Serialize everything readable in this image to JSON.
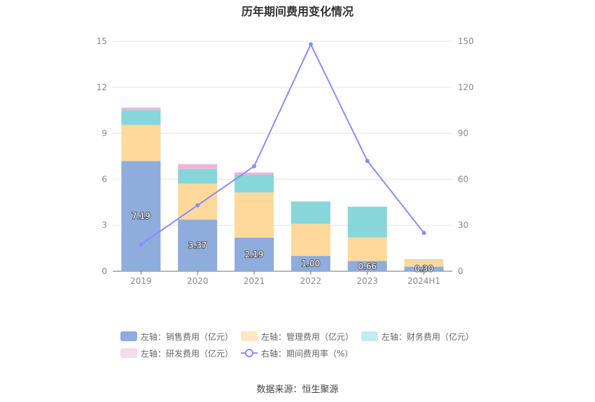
{
  "chart_data": {
    "type": "bar",
    "title": "历年期间费用变化情况",
    "categories": [
      "2019",
      "2020",
      "2021",
      "2022",
      "2023",
      "2024H1"
    ],
    "stacked": true,
    "series": [
      {
        "name": "左轴：销售费用（亿元）",
        "axis": "left",
        "color": "#8eacdc",
        "values": [
          7.19,
          3.37,
          2.19,
          1.0,
          0.66,
          0.3
        ],
        "labels": [
          "7.19",
          "3.37",
          "2.19",
          "1.00",
          "0.66",
          "0.30"
        ]
      },
      {
        "name": "左轴：管理费用（亿元）",
        "axis": "left",
        "color": "#fed99b",
        "values": [
          2.35,
          2.35,
          2.95,
          2.1,
          1.55,
          0.45
        ]
      },
      {
        "name": "左轴：财务费用（亿元）",
        "axis": "left",
        "color": "#86d6da",
        "values": [
          0.98,
          0.95,
          1.15,
          1.45,
          2.0,
          0.03
        ]
      },
      {
        "name": "左轴：研发费用（亿元）",
        "axis": "left",
        "color": "#e9b8d9",
        "values": [
          0.15,
          0.32,
          0.15,
          0.0,
          0.0,
          0.0
        ]
      },
      {
        "name": "右轴：期间费用率（%）",
        "axis": "right",
        "type": "line",
        "color": "#8a8df5",
        "values": [
          17.5,
          43,
          68.5,
          148,
          72,
          25
        ]
      }
    ],
    "left_axis": {
      "ylim": [
        0,
        15
      ],
      "ticks": [
        "0",
        "3",
        "6",
        "9",
        "12",
        "15"
      ]
    },
    "right_axis": {
      "ylim": [
        0,
        150
      ],
      "ticks": [
        "0",
        "30",
        "60",
        "90",
        "120",
        "150"
      ]
    },
    "grid": true,
    "legend_position": "bottom"
  },
  "legend": [
    {
      "label": "左轴：销售费用（亿元）",
      "color": "#8eacdc",
      "kind": "bar"
    },
    {
      "label": "左轴：管理费用（亿元）",
      "color": "#fde8c4",
      "kind": "bar"
    },
    {
      "label": "左轴：财务费用（亿元）",
      "color": "#c3ecee",
      "kind": "bar"
    },
    {
      "label": "左轴：研发费用（亿元）",
      "color": "#f4dcea",
      "kind": "bar"
    },
    {
      "label": "右轴：期间费用率（%）",
      "color": "#8a8df5",
      "kind": "line"
    }
  ],
  "source": "数据来源：恒生聚源"
}
